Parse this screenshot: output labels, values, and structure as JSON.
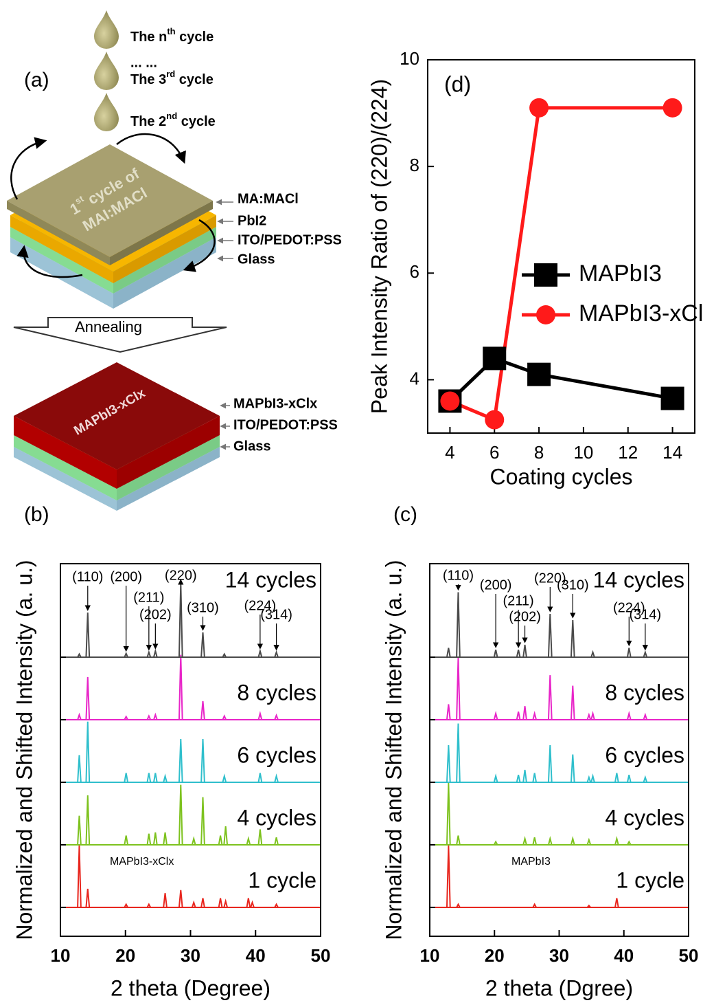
{
  "diagram": {
    "label": "(a)",
    "cycle_n": [
      "The n",
      "th",
      " cycle"
    ],
    "ellipsis": "... ...",
    "cycle_3": [
      "The 3",
      "rd",
      " cycle"
    ],
    "cycle_2": [
      "The 2",
      "nd",
      " cycle"
    ],
    "first_cycle": [
      "1",
      "st",
      " cycle of",
      "MAI:MACl"
    ],
    "before_layers": [
      "MA:MACl",
      "PbI2",
      "ITO/PEDOT:PSS",
      "Glass"
    ],
    "process": "Annealing",
    "film": "MAPbI3-xClx",
    "after_layers": [
      "MAPbI3-xClx",
      "ITO/PEDOT:PSS",
      "Glass"
    ]
  },
  "chart_data": [
    {
      "type": "line",
      "panel_label": "(d)",
      "x_label": "Coating cycles",
      "y_label": "Peak Intensity Ratio of (220)/(224)",
      "x": [
        4,
        6,
        8,
        14
      ],
      "xlim": [
        3,
        15
      ],
      "xticks": [
        4,
        6,
        8,
        10,
        12,
        14
      ],
      "ylim": [
        3,
        10
      ],
      "yticks": [
        4,
        6,
        8,
        10
      ],
      "series": [
        {
          "name": "MAPbI3",
          "color": "#000000",
          "marker": "square",
          "values": [
            3.6,
            4.4,
            4.1,
            3.65
          ]
        },
        {
          "name": "MAPbI3-xClx",
          "color": "#ff1a1a",
          "marker": "circle",
          "values": [
            3.6,
            3.25,
            9.1,
            9.1
          ]
        }
      ]
    },
    {
      "type": "spectrum",
      "panel_label": "(b)",
      "x_label": "2 theta (Degree)",
      "y_label": "Normalized and Shifted Intensity (a. u.)",
      "xlim": [
        10,
        50
      ],
      "xticks": [
        10,
        20,
        30,
        40,
        50
      ],
      "composition": "MAPbI3-xClx",
      "annotations": [
        {
          "label": "(110)",
          "x": 14.2
        },
        {
          "label": "(200)",
          "x": 20.1
        },
        {
          "label": "(211)",
          "x": 23.6
        },
        {
          "label": "(202)",
          "x": 24.6
        },
        {
          "label": "(220)",
          "x": 28.5
        },
        {
          "label": "(310)",
          "x": 31.9
        },
        {
          "label": "(224)",
          "x": 40.7
        },
        {
          "label": "(314)",
          "x": 43.2
        }
      ],
      "series": [
        {
          "name": "1 cycle",
          "color": "#e8261e",
          "peaks": [
            12.9,
            14.2,
            20.1,
            23.6,
            26.1,
            28.5,
            30.5,
            31.9,
            34.6,
            35.4,
            38.9,
            39.5,
            43.2
          ],
          "values": [
            1.0,
            0.3,
            0.05,
            0.05,
            0.23,
            0.28,
            0.08,
            0.15,
            0.15,
            0.1,
            0.15,
            0.08,
            0.05
          ]
        },
        {
          "name": "4 cycles",
          "color": "#7dc21e",
          "peaks": [
            12.9,
            14.2,
            20.1,
            23.6,
            24.6,
            26.1,
            28.5,
            30.5,
            31.9,
            34.6,
            35.4,
            38.9,
            40.7,
            43.2
          ],
          "values": [
            0.47,
            0.8,
            0.15,
            0.18,
            0.2,
            0.2,
            0.97,
            0.1,
            0.77,
            0.15,
            0.3,
            0.1,
            0.25,
            0.12
          ]
        },
        {
          "name": "6 cycles",
          "color": "#2fbfcc",
          "peaks": [
            12.9,
            14.2,
            20.1,
            23.6,
            24.6,
            26.1,
            28.5,
            31.9,
            35.2,
            40.7,
            43.2
          ],
          "values": [
            0.44,
            0.98,
            0.15,
            0.15,
            0.15,
            0.1,
            0.7,
            0.7,
            0.1,
            0.15,
            0.1
          ]
        },
        {
          "name": "8 cycles",
          "color": "#e825c8",
          "peaks": [
            12.9,
            14.2,
            20.1,
            23.6,
            24.6,
            28.5,
            31.9,
            35.2,
            40.7,
            43.2
          ],
          "values": [
            0.08,
            0.69,
            0.05,
            0.06,
            0.08,
            1.05,
            0.3,
            0.06,
            0.1,
            0.07
          ]
        },
        {
          "name": "14 cycles",
          "color": "#4a4a4a",
          "peaks": [
            12.9,
            14.2,
            20.1,
            23.6,
            24.6,
            28.5,
            31.9,
            35.2,
            40.7,
            43.2
          ],
          "values": [
            0.05,
            0.72,
            0.06,
            0.08,
            0.1,
            1.2,
            0.4,
            0.05,
            0.1,
            0.08
          ]
        }
      ]
    },
    {
      "type": "spectrum",
      "panel_label": "(c)",
      "x_label": "2 theta (Dgree)",
      "y_label": "Normalized and Shifted Intensity (a. u.)",
      "xlim": [
        10,
        50
      ],
      "xticks": [
        10,
        20,
        30,
        40,
        50
      ],
      "composition": "MAPbI3",
      "annotations": [
        {
          "label": "(110)",
          "x": 14.4
        },
        {
          "label": "(200)",
          "x": 20.2
        },
        {
          "label": "(211)",
          "x": 23.7
        },
        {
          "label": "(202)",
          "x": 24.7
        },
        {
          "label": "(220)",
          "x": 28.6
        },
        {
          "label": "(310)",
          "x": 32.1
        },
        {
          "label": "(224)",
          "x": 40.8
        },
        {
          "label": "(314)",
          "x": 43.3
        }
      ],
      "series": [
        {
          "name": "1 cycle",
          "color": "#e8261e",
          "peaks": [
            12.9,
            14.4,
            26.2,
            34.6,
            38.9
          ],
          "values": [
            1.0,
            0.05,
            0.05,
            0.03,
            0.15
          ]
        },
        {
          "name": "4 cycles",
          "color": "#7dc21e",
          "peaks": [
            12.9,
            14.4,
            20.2,
            24.7,
            26.2,
            28.6,
            32.1,
            34.6,
            38.9,
            40.8
          ],
          "values": [
            1.0,
            0.15,
            0.05,
            0.1,
            0.12,
            0.1,
            0.1,
            0.08,
            0.1,
            0.05
          ]
        },
        {
          "name": "6 cycles",
          "color": "#2fbfcc",
          "peaks": [
            12.9,
            14.4,
            20.2,
            23.7,
            24.7,
            26.2,
            28.6,
            32.1,
            34.6,
            35.2,
            38.9,
            40.8,
            43.3
          ],
          "values": [
            0.6,
            0.95,
            0.1,
            0.12,
            0.2,
            0.15,
            0.6,
            0.45,
            0.08,
            0.1,
            0.15,
            0.12,
            0.08
          ]
        },
        {
          "name": "8 cycles",
          "color": "#e825c8",
          "peaks": [
            12.9,
            14.4,
            20.2,
            23.7,
            24.7,
            26.2,
            28.6,
            32.1,
            34.6,
            35.2,
            40.8,
            43.3
          ],
          "values": [
            0.25,
            1.0,
            0.1,
            0.13,
            0.22,
            0.1,
            0.72,
            0.55,
            0.08,
            0.1,
            0.1,
            0.08
          ]
        },
        {
          "name": "14 cycles",
          "color": "#4a4a4a",
          "peaks": [
            12.9,
            14.4,
            20.2,
            23.7,
            24.7,
            28.6,
            32.1,
            35.2,
            40.8,
            43.3
          ],
          "values": [
            0.15,
            1.05,
            0.12,
            0.12,
            0.2,
            0.7,
            0.6,
            0.08,
            0.15,
            0.08
          ]
        }
      ]
    }
  ]
}
